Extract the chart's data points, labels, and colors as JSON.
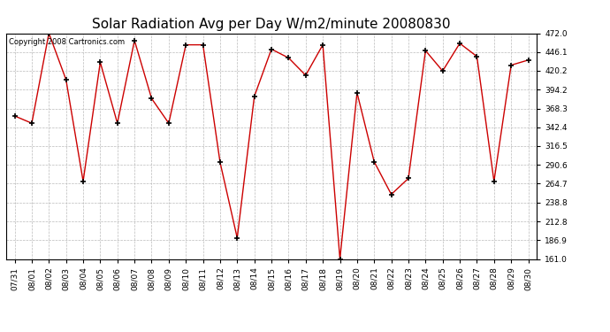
{
  "title": "Solar Radiation Avg per Day W/m2/minute 20080830",
  "copyright_text": "Copyright 2008 Cartronics.com",
  "dates": [
    "07/31",
    "08/01",
    "08/02",
    "08/03",
    "08/04",
    "08/05",
    "08/06",
    "08/07",
    "08/08",
    "08/09",
    "08/10",
    "08/11",
    "08/12",
    "08/13",
    "08/14",
    "08/15",
    "08/16",
    "08/17",
    "08/18",
    "08/19",
    "08/20",
    "08/21",
    "08/22",
    "08/23",
    "08/24",
    "08/25",
    "08/26",
    "08/27",
    "08/28",
    "08/29",
    "08/30"
  ],
  "values": [
    358.0,
    348.0,
    472.0,
    408.0,
    268.0,
    432.0,
    348.0,
    462.0,
    382.0,
    348.0,
    456.0,
    456.0,
    294.0,
    190.0,
    385.0,
    450.0,
    438.0,
    414.0,
    456.0,
    161.0,
    390.0,
    295.0,
    250.0,
    272.0,
    448.0,
    420.0,
    458.0,
    440.0,
    268.0,
    428.0,
    435.0
  ],
  "ylim": [
    161.0,
    472.0
  ],
  "yticks": [
    161.0,
    186.9,
    212.8,
    238.8,
    264.7,
    290.6,
    316.5,
    342.4,
    368.3,
    394.2,
    420.2,
    446.1,
    472.0
  ],
  "line_color": "#cc0000",
  "marker_color": "#000000",
  "marker_size": 5,
  "bg_color": "#ffffff",
  "grid_color": "#bbbbbb",
  "title_fontsize": 11,
  "tick_fontsize": 6.5,
  "copyright_fontsize": 6
}
